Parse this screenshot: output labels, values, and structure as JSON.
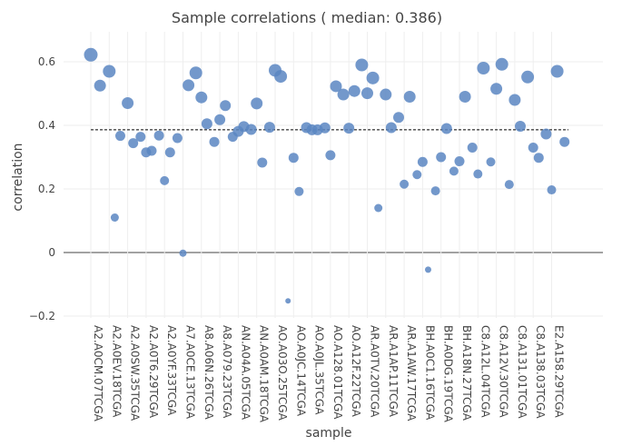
{
  "chart_data": {
    "type": "scatter",
    "title": "Sample correlations ( median: 0.386)",
    "xlabel": "sample",
    "ylabel": "correlation",
    "ylim": [
      -0.22,
      0.69
    ],
    "yticks": [
      -0.2,
      0,
      0.2,
      0.4,
      0.6
    ],
    "ytick_labels": [
      "−0.2",
      "0",
      "0.2",
      "0.4",
      "0.6"
    ],
    "median": 0.386,
    "grid": true,
    "marker_color": "#5b86c2",
    "x_tick_labels": [
      "A2.A0CM.07TCGA",
      "A2.A0EV.18TCGA",
      "A2.A0SW.35TCGA",
      "A2.A0T6.29TCGA",
      "A2.A0YF.33TCGA",
      "A7.A0CE.13TCGA",
      "A8.A06N.26TCGA",
      "A8.A079.23TCGA",
      "AN.A04A.05TCGA",
      "AN.A0AM.18TCGA",
      "AO.A03O.25TCGA",
      "AO.A0JC.14TCGA",
      "AO.A0JL.35TCGA",
      "AO.A128.01TCGA",
      "AO.A12F.22TCGA",
      "AR.A0TV.20TCGA",
      "AR.A1AP.11TCGA",
      "AR.A1AW.17TCGA",
      "BH.A0C1.16TCGA",
      "BH.A0DG.19TCGA",
      "BH.A18N.27TCGA",
      "C8.A12L.04TCGA",
      "C8.A12V.30TCGA",
      "C8.A131.01TCGA",
      "C8.A138.03TCGA",
      "E2.A158.29TCGA"
    ],
    "points": [
      {
        "x": 0.0,
        "y": 0.622,
        "size": 15
      },
      {
        "x": 0.5,
        "y": 0.525,
        "size": 13
      },
      {
        "x": 1.0,
        "y": 0.57,
        "size": 14
      },
      {
        "x": 1.3,
        "y": 0.11,
        "size": 9
      },
      {
        "x": 1.6,
        "y": 0.367,
        "size": 11
      },
      {
        "x": 2.0,
        "y": 0.47,
        "size": 13
      },
      {
        "x": 2.3,
        "y": 0.344,
        "size": 11
      },
      {
        "x": 2.7,
        "y": 0.364,
        "size": 11
      },
      {
        "x": 3.0,
        "y": 0.315,
        "size": 11
      },
      {
        "x": 3.3,
        "y": 0.32,
        "size": 11
      },
      {
        "x": 3.7,
        "y": 0.368,
        "size": 11
      },
      {
        "x": 4.0,
        "y": 0.226,
        "size": 10
      },
      {
        "x": 4.3,
        "y": 0.315,
        "size": 11
      },
      {
        "x": 4.7,
        "y": 0.36,
        "size": 11
      },
      {
        "x": 5.0,
        "y": -0.002,
        "size": 8
      },
      {
        "x": 5.3,
        "y": 0.526,
        "size": 13
      },
      {
        "x": 5.7,
        "y": 0.565,
        "size": 14
      },
      {
        "x": 6.0,
        "y": 0.488,
        "size": 13
      },
      {
        "x": 6.3,
        "y": 0.405,
        "size": 12
      },
      {
        "x": 6.7,
        "y": 0.348,
        "size": 11
      },
      {
        "x": 7.0,
        "y": 0.418,
        "size": 12
      },
      {
        "x": 7.3,
        "y": 0.462,
        "size": 12
      },
      {
        "x": 7.7,
        "y": 0.364,
        "size": 11
      },
      {
        "x": 8.0,
        "y": 0.381,
        "size": 12
      },
      {
        "x": 8.3,
        "y": 0.396,
        "size": 12
      },
      {
        "x": 8.7,
        "y": 0.387,
        "size": 12
      },
      {
        "x": 9.0,
        "y": 0.469,
        "size": 13
      },
      {
        "x": 9.3,
        "y": 0.283,
        "size": 11
      },
      {
        "x": 9.7,
        "y": 0.394,
        "size": 12
      },
      {
        "x": 10.0,
        "y": 0.573,
        "size": 14
      },
      {
        "x": 10.3,
        "y": 0.554,
        "size": 14
      },
      {
        "x": 10.7,
        "y": -0.152,
        "size": 6
      },
      {
        "x": 11.0,
        "y": 0.298,
        "size": 11
      },
      {
        "x": 11.3,
        "y": 0.192,
        "size": 10
      },
      {
        "x": 11.7,
        "y": 0.393,
        "size": 12
      },
      {
        "x": 12.0,
        "y": 0.386,
        "size": 12
      },
      {
        "x": 12.3,
        "y": 0.386,
        "size": 12
      },
      {
        "x": 12.7,
        "y": 0.392,
        "size": 12
      },
      {
        "x": 13.0,
        "y": 0.306,
        "size": 11
      },
      {
        "x": 13.3,
        "y": 0.523,
        "size": 13
      },
      {
        "x": 13.7,
        "y": 0.497,
        "size": 13
      },
      {
        "x": 14.0,
        "y": 0.391,
        "size": 12
      },
      {
        "x": 14.3,
        "y": 0.508,
        "size": 13
      },
      {
        "x": 14.7,
        "y": 0.59,
        "size": 14
      },
      {
        "x": 15.0,
        "y": 0.501,
        "size": 13
      },
      {
        "x": 15.3,
        "y": 0.549,
        "size": 14
      },
      {
        "x": 15.6,
        "y": 0.14,
        "size": 9
      },
      {
        "x": 16.0,
        "y": 0.497,
        "size": 13
      },
      {
        "x": 16.3,
        "y": 0.393,
        "size": 12
      },
      {
        "x": 16.7,
        "y": 0.425,
        "size": 12
      },
      {
        "x": 17.0,
        "y": 0.215,
        "size": 10
      },
      {
        "x": 17.3,
        "y": 0.49,
        "size": 13
      },
      {
        "x": 17.7,
        "y": 0.245,
        "size": 10
      },
      {
        "x": 18.0,
        "y": 0.285,
        "size": 11
      },
      {
        "x": 18.3,
        "y": -0.054,
        "size": 7
      },
      {
        "x": 18.7,
        "y": 0.194,
        "size": 10
      },
      {
        "x": 19.0,
        "y": 0.3,
        "size": 11
      },
      {
        "x": 19.3,
        "y": 0.39,
        "size": 12
      },
      {
        "x": 19.7,
        "y": 0.256,
        "size": 10
      },
      {
        "x": 20.0,
        "y": 0.287,
        "size": 11
      },
      {
        "x": 20.3,
        "y": 0.49,
        "size": 13
      },
      {
        "x": 20.7,
        "y": 0.33,
        "size": 11
      },
      {
        "x": 21.0,
        "y": 0.247,
        "size": 10
      },
      {
        "x": 21.3,
        "y": 0.58,
        "size": 14
      },
      {
        "x": 21.7,
        "y": 0.285,
        "size": 10
      },
      {
        "x": 22.0,
        "y": 0.515,
        "size": 13
      },
      {
        "x": 22.3,
        "y": 0.592,
        "size": 14
      },
      {
        "x": 22.7,
        "y": 0.214,
        "size": 10
      },
      {
        "x": 23.0,
        "y": 0.48,
        "size": 13
      },
      {
        "x": 23.3,
        "y": 0.397,
        "size": 12
      },
      {
        "x": 23.7,
        "y": 0.552,
        "size": 14
      },
      {
        "x": 24.0,
        "y": 0.33,
        "size": 11
      },
      {
        "x": 24.3,
        "y": 0.298,
        "size": 11
      },
      {
        "x": 24.7,
        "y": 0.373,
        "size": 12
      },
      {
        "x": 25.0,
        "y": 0.197,
        "size": 10
      },
      {
        "x": 25.3,
        "y": 0.57,
        "size": 14
      },
      {
        "x": 25.7,
        "y": 0.348,
        "size": 11
      }
    ]
  }
}
